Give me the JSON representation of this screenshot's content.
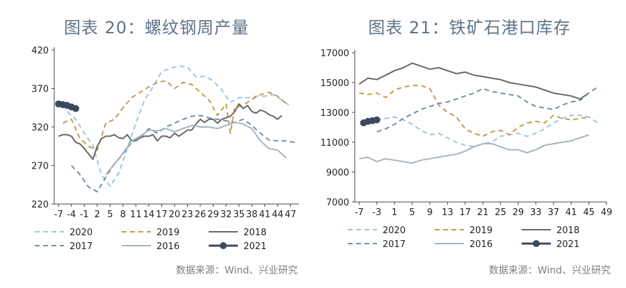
{
  "charts": [
    {
      "title": "图表 20：螺纹钢周产量",
      "source": "数据来源：Wind、兴业研究"
    },
    {
      "title": "图表 21：铁矿石港口库存",
      "source": "数据来源：Wind、兴业研究"
    }
  ],
  "chart_data": [
    {
      "type": "line",
      "title": "图表 20：螺纹钢周产量",
      "ylim": [
        220,
        420
      ],
      "yticks": [
        220,
        270,
        320,
        370,
        420
      ],
      "xlim": [
        -8,
        49
      ],
      "xticks": [
        -7,
        -4,
        -1,
        2,
        5,
        8,
        11,
        14,
        17,
        20,
        23,
        26,
        29,
        32,
        35,
        38,
        41,
        44,
        47
      ],
      "legend": "bottom",
      "grid": false,
      "series": [
        {
          "name": "2020",
          "color": "#9cc6e0",
          "style": "dash",
          "x": [
            -5,
            -3,
            -1,
            1,
            3,
            5,
            7,
            9,
            11,
            13,
            15,
            17,
            19,
            21,
            23,
            25,
            27,
            29,
            31,
            33,
            35,
            37,
            39,
            41,
            43,
            45,
            47
          ],
          "y": [
            340,
            330,
            312,
            296,
            258,
            243,
            260,
            292,
            325,
            355,
            372,
            392,
            396,
            399,
            398,
            385,
            386,
            380,
            368,
            352,
            358,
            358,
            360,
            360,
            362,
            355,
            347
          ]
        },
        {
          "name": "2019",
          "color": "#c49a4f",
          "style": "dash",
          "x": [
            -6,
            -4,
            -2,
            0,
            2,
            4,
            6,
            8,
            10,
            12,
            14,
            16,
            18,
            20,
            22,
            24,
            26,
            28,
            30,
            32,
            33,
            34,
            36,
            38,
            40,
            42,
            44,
            46
          ],
          "y": [
            325,
            330,
            305,
            295,
            290,
            325,
            330,
            345,
            358,
            365,
            372,
            378,
            380,
            370,
            378,
            375,
            365,
            355,
            335,
            350,
            312,
            345,
            348,
            356,
            362,
            365,
            360,
            350
          ]
        },
        {
          "name": "2018",
          "color": "#666666",
          "style": "solid",
          "x": [
            -7,
            -6,
            -5,
            -4,
            -3,
            -2,
            -1,
            0,
            1,
            2,
            3,
            4,
            5,
            6,
            7,
            8,
            9,
            10,
            11,
            12,
            13,
            14,
            15,
            16,
            17,
            18,
            19,
            20,
            21,
            22,
            23,
            24,
            25,
            26,
            27,
            28,
            29,
            30,
            31,
            32,
            33,
            34,
            35,
            36,
            37,
            38,
            39,
            40,
            41,
            42,
            43,
            44,
            45
          ],
          "y": [
            308,
            310,
            310,
            308,
            300,
            298,
            292,
            285,
            278,
            295,
            305,
            308,
            308,
            310,
            306,
            305,
            310,
            302,
            302,
            306,
            308,
            308,
            310,
            302,
            308,
            308,
            306,
            312,
            308,
            312,
            316,
            316,
            324,
            330,
            326,
            330,
            330,
            325,
            330,
            332,
            334,
            340,
            350,
            344,
            348,
            340,
            338,
            342,
            340,
            336,
            334,
            330,
            335
          ]
        },
        {
          "name": "2017",
          "color": "#6e90a8",
          "style": "dash",
          "x": [
            -4,
            -2,
            0,
            2,
            4,
            6,
            8,
            10,
            12,
            14,
            16,
            18,
            20,
            22,
            24,
            26,
            28,
            30,
            32,
            34,
            36,
            38,
            40,
            42,
            44,
            46,
            48
          ],
          "y": [
            270,
            258,
            242,
            236,
            255,
            272,
            285,
            300,
            306,
            318,
            312,
            320,
            325,
            330,
            334,
            335,
            332,
            330,
            328,
            326,
            330,
            322,
            312,
            303,
            302,
            302,
            300
          ]
        },
        {
          "name": "2016",
          "color": "#a3b4bf",
          "style": "solid",
          "x": [
            4,
            6,
            8,
            10,
            12,
            14,
            16,
            18,
            20,
            22,
            24,
            26,
            28,
            30,
            32,
            34,
            36,
            38,
            40,
            42,
            44,
            46
          ],
          "y": [
            258,
            272,
            286,
            302,
            308,
            316,
            315,
            318,
            314,
            318,
            322,
            320,
            320,
            318,
            322,
            326,
            324,
            318,
            302,
            292,
            290,
            280
          ]
        },
        {
          "name": "2021",
          "color": "#3a4a5c",
          "style": "marker",
          "x": [
            -7,
            -6,
            -5,
            -4,
            -3
          ],
          "y": [
            350,
            349,
            348,
            346,
            344
          ]
        }
      ]
    },
    {
      "type": "line",
      "title": "图表 21：铁矿石港口库存",
      "ylim": [
        7000,
        17000
      ],
      "yticks": [
        7000,
        9000,
        11000,
        13000,
        15000,
        17000
      ],
      "xlim": [
        -8,
        49
      ],
      "xticks": [
        -7,
        -3,
        1,
        5,
        9,
        13,
        17,
        21,
        25,
        29,
        33,
        37,
        41,
        45,
        49
      ],
      "legend": "bottom",
      "grid": false,
      "series": [
        {
          "name": "2020",
          "color": "#9cc6e0",
          "style": "dash",
          "x": [
            -5,
            -3,
            -1,
            1,
            3,
            5,
            7,
            9,
            11,
            13,
            15,
            17,
            19,
            21,
            23,
            25,
            27,
            29,
            31,
            33,
            35,
            37,
            39,
            41,
            43,
            45,
            47
          ],
          "y": [
            12400,
            12500,
            12600,
            12700,
            12500,
            12200,
            11800,
            11500,
            11600,
            11300,
            11000,
            10800,
            10700,
            10900,
            11000,
            11400,
            11500,
            11600,
            11400,
            11600,
            11900,
            12300,
            12600,
            12800,
            12800,
            12700,
            12300
          ]
        },
        {
          "name": "2019",
          "color": "#c49a4f",
          "style": "dash",
          "x": [
            -7,
            -5,
            -3,
            -1,
            1,
            3,
            5,
            7,
            9,
            11,
            13,
            15,
            17,
            19,
            21,
            23,
            25,
            27,
            29,
            31,
            33,
            35,
            37,
            39,
            41,
            43,
            45
          ],
          "y": [
            14300,
            14200,
            14300,
            14000,
            14500,
            14700,
            14800,
            14800,
            14600,
            13500,
            13000,
            12700,
            11900,
            11600,
            11400,
            11700,
            11800,
            11500,
            12000,
            12300,
            12400,
            12300,
            12800,
            12600,
            12500,
            12600,
            12700
          ]
        },
        {
          "name": "2018",
          "color": "#666666",
          "style": "solid",
          "x": [
            -7,
            -5,
            -3,
            -1,
            1,
            3,
            5,
            7,
            9,
            11,
            13,
            15,
            17,
            19,
            21,
            23,
            25,
            27,
            29,
            31,
            33,
            35,
            37,
            39,
            41,
            43,
            45
          ],
          "y": [
            14900,
            15300,
            15200,
            15500,
            15800,
            16000,
            16300,
            16100,
            15900,
            16000,
            15800,
            15600,
            15700,
            15500,
            15400,
            15300,
            15200,
            15000,
            14900,
            14800,
            14700,
            14500,
            14300,
            14200,
            14100,
            13900,
            14300
          ]
        },
        {
          "name": "2017",
          "color": "#6e90a8",
          "style": "dash",
          "x": [
            -3,
            -1,
            1,
            3,
            5,
            7,
            9,
            11,
            13,
            15,
            17,
            19,
            21,
            23,
            25,
            27,
            29,
            31,
            33,
            35,
            37,
            39,
            41,
            43,
            45,
            47
          ],
          "y": [
            11700,
            11900,
            12200,
            12600,
            12900,
            13200,
            13400,
            13600,
            13700,
            13900,
            14100,
            14300,
            14600,
            14400,
            14300,
            14200,
            14100,
            13700,
            13400,
            13300,
            13200,
            13500,
            13700,
            13800,
            14300,
            14700
          ]
        },
        {
          "name": "2016",
          "color": "#a3b4bf",
          "style": "solid",
          "x": [
            -7,
            -5,
            -3,
            -1,
            1,
            3,
            5,
            7,
            9,
            11,
            13,
            15,
            17,
            19,
            21,
            23,
            25,
            27,
            29,
            31,
            33,
            35,
            37,
            39,
            41,
            43,
            45
          ],
          "y": [
            9900,
            10000,
            9700,
            9900,
            9800,
            9700,
            9600,
            9800,
            9900,
            10000,
            10100,
            10200,
            10400,
            10700,
            10900,
            10900,
            10700,
            10500,
            10500,
            10300,
            10500,
            10800,
            10900,
            11000,
            11100,
            11300,
            11500
          ]
        },
        {
          "name": "2021",
          "color": "#3a4a5c",
          "style": "marker",
          "x": [
            -6,
            -5,
            -4,
            -3
          ],
          "y": [
            12300,
            12400,
            12450,
            12500
          ]
        }
      ]
    }
  ]
}
